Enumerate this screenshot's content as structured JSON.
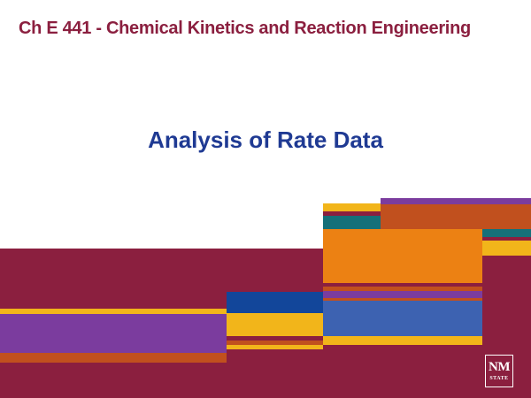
{
  "slide": {
    "course_title": "Ch E 441 - Chemical Kinetics and Reaction Engineering",
    "title": "Analysis of Rate Data"
  },
  "logo": {
    "line1": "NM",
    "line2": "STATE"
  },
  "colors": {
    "maroon": "#8b1f3f",
    "title_blue": "#1f3a93",
    "orange": "#ec8113",
    "rust": "#c1501e",
    "purple": "#7b3c9e",
    "yellow": "#f2b51a",
    "navy": "#12469a",
    "steel_blue": "#3d62b1",
    "teal": "#157079"
  }
}
